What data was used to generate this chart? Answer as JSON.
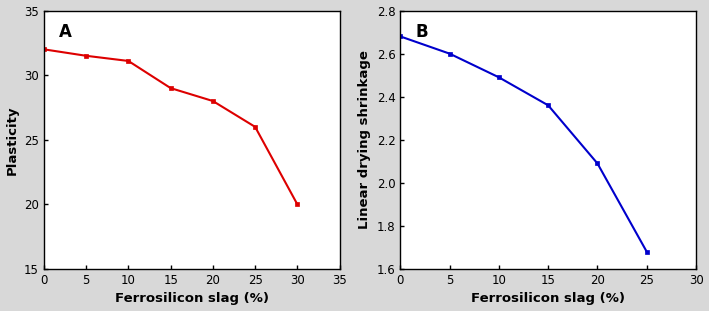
{
  "chart_A": {
    "x": [
      0,
      5,
      10,
      15,
      20,
      25,
      30
    ],
    "y": [
      32.0,
      31.5,
      31.1,
      29.0,
      28.0,
      26.0,
      20.0
    ],
    "color": "#dd0000",
    "xlabel": "Ferrosilicon slag (%)",
    "ylabel": "Plasticity",
    "xlim": [
      0,
      35
    ],
    "ylim": [
      15,
      35
    ],
    "xticks": [
      0,
      5,
      10,
      15,
      20,
      25,
      30,
      35
    ],
    "yticks": [
      15,
      20,
      25,
      30,
      35
    ],
    "label": "A",
    "markersize": 3.5
  },
  "chart_B": {
    "x": [
      0,
      5,
      10,
      15,
      20,
      25
    ],
    "y": [
      2.68,
      2.6,
      2.49,
      2.36,
      2.09,
      1.68
    ],
    "color": "#0000cc",
    "xlabel": "Ferrosilicon slag (%)",
    "ylabel": "Linear drying shrinkage",
    "xlim": [
      0,
      30
    ],
    "ylim": [
      1.6,
      2.8
    ],
    "xticks": [
      0,
      5,
      10,
      15,
      20,
      25,
      30
    ],
    "yticks": [
      1.6,
      1.8,
      2.0,
      2.2,
      2.4,
      2.6,
      2.8
    ],
    "label": "B",
    "markersize": 3.5
  },
  "tick_fontsize": 8.5,
  "label_fontsize": 9.5,
  "annotation_fontsize": 12,
  "linewidth": 1.5,
  "figure_facecolor": "#d8d8d8",
  "axes_facecolor": "#ffffff"
}
